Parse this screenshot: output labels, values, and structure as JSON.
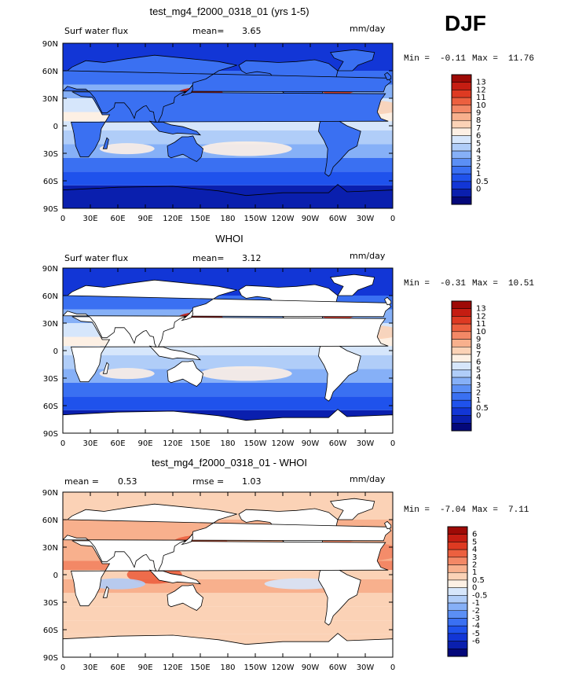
{
  "season": "DJF",
  "colors": {
    "abs_scale": [
      "#04087a",
      "#0a1fae",
      "#1236d6",
      "#1f52ec",
      "#3a70f2",
      "#5b8ff5",
      "#86b0f7",
      "#b0cdf8",
      "#d6e6fb",
      "#fdf0e4",
      "#fbd2b6",
      "#f8b08d",
      "#f38866",
      "#ec603f",
      "#de3a22",
      "#c51d12",
      "#9e0a06"
    ],
    "diff_scale": [
      "#04087a",
      "#0a1fae",
      "#1236d6",
      "#1f52ec",
      "#3a70f2",
      "#5b8ff5",
      "#86b0f7",
      "#b0cdf8",
      "#d6e6fb",
      "#fdf0e4",
      "#fbd2b6",
      "#f8b08d",
      "#f38866",
      "#ec603f",
      "#de3a22",
      "#c51d12",
      "#9e0a06"
    ],
    "land_white": "#ffffff"
  },
  "chart_data": [
    {
      "type": "heatmap",
      "title": "test_mg4_f2000_0318_01 (yrs 1-5)",
      "field_label": "Surf water flux",
      "stat1_label": "mean=",
      "stat1_value": "3.65",
      "units": "mm/day",
      "min_label": "Min =",
      "min_value": "-0.11",
      "max_label": "Max =",
      "max_value": "11.76",
      "x_ticks": [
        "0",
        "30E",
        "60E",
        "90E",
        "120E",
        "150E",
        "180",
        "150W",
        "120W",
        "90W",
        "60W",
        "30W",
        "0"
      ],
      "y_ticks": [
        "90N",
        "60N",
        "30N",
        "0",
        "30S",
        "60S",
        "90S"
      ],
      "colorbar_labels": [
        "13",
        "12",
        "11",
        "10",
        "9",
        "8",
        "7",
        "6",
        "5",
        "4",
        "3",
        "2",
        "1",
        "0.5",
        "0"
      ],
      "ocean_only": false
    },
    {
      "type": "heatmap",
      "title": "WHOI",
      "field_label": "Surf water flux",
      "stat1_label": "mean=",
      "stat1_value": "3.12",
      "units": "mm/day",
      "min_label": "Min =",
      "min_value": "-0.31",
      "max_label": "Max =",
      "max_value": "10.51",
      "x_ticks": [
        "0",
        "30E",
        "60E",
        "90E",
        "120E",
        "150E",
        "180",
        "150W",
        "120W",
        "90W",
        "60W",
        "30W",
        "0"
      ],
      "y_ticks": [
        "90N",
        "60N",
        "30N",
        "0",
        "30S",
        "60S",
        "90S"
      ],
      "colorbar_labels": [
        "13",
        "12",
        "11",
        "10",
        "9",
        "8",
        "7",
        "6",
        "5",
        "4",
        "3",
        "2",
        "1",
        "0.5",
        "0"
      ],
      "ocean_only": true
    },
    {
      "type": "heatmap",
      "title": "test_mg4_f2000_0318_01 - WHOI",
      "field_label": "",
      "stat1_label": "mean =",
      "stat1_value": "0.53",
      "stat2_label": "rmse =",
      "stat2_value": "1.03",
      "units": "mm/day",
      "min_label": "Min =",
      "min_value": "-7.04",
      "max_label": "Max =",
      "max_value": "7.11",
      "x_ticks": [
        "0",
        "30E",
        "60E",
        "90E",
        "120E",
        "150E",
        "180",
        "150W",
        "120W",
        "90W",
        "60W",
        "30W",
        "0"
      ],
      "y_ticks": [
        "90N",
        "60N",
        "30N",
        "0",
        "30S",
        "60S",
        "90S"
      ],
      "colorbar_labels": [
        "6",
        "5",
        "4",
        "3",
        "2",
        "1",
        "0.5",
        "0",
        "-0.5",
        "-1",
        "-2",
        "-3",
        "-4",
        "-5",
        "-6"
      ],
      "ocean_only": true
    }
  ]
}
